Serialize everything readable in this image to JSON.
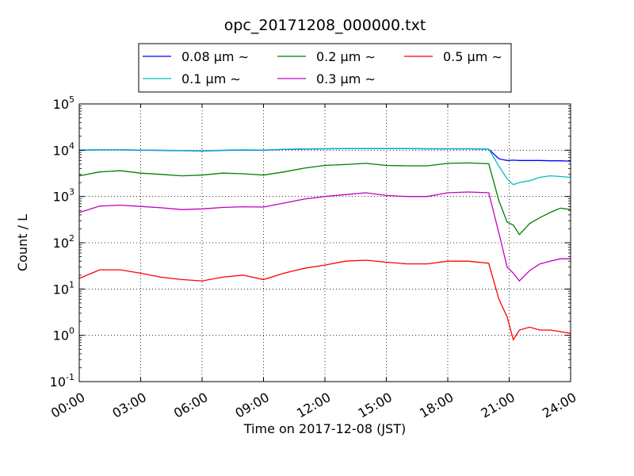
{
  "chart_data": {
    "type": "line",
    "title": "opc_20171208_000000.txt",
    "xlabel": "Time on 2017-12-08 (JST)",
    "ylabel": "Count / L",
    "xlim": [
      0,
      24
    ],
    "ylim": [
      0.1,
      100000
    ],
    "yscale": "log",
    "grid": true,
    "legend_position": "top-center, outside plot, 3 columns",
    "x_tick_labels": [
      "00:00",
      "03:00",
      "06:00",
      "09:00",
      "12:00",
      "15:00",
      "18:00",
      "21:00",
      "24:00"
    ],
    "x_ticks": [
      0,
      3,
      6,
      9,
      12,
      15,
      18,
      21,
      24
    ],
    "y_ticks": [
      {
        "base": "10",
        "exp": "-1"
      },
      {
        "base": "10",
        "exp": "0"
      },
      {
        "base": "10",
        "exp": "1"
      },
      {
        "base": "10",
        "exp": "2"
      },
      {
        "base": "10",
        "exp": "3"
      },
      {
        "base": "10",
        "exp": "4"
      },
      {
        "base": "10",
        "exp": "5"
      }
    ],
    "x": [
      0,
      1,
      2,
      3,
      4,
      5,
      6,
      7,
      8,
      9,
      10,
      11,
      12,
      13,
      14,
      15,
      16,
      17,
      18,
      19,
      20,
      20.5,
      20.9,
      21.2,
      21.5,
      22,
      22.5,
      23,
      23.5,
      24
    ],
    "series": [
      {
        "name": "0.08 μm ∼",
        "color": "#0000ff",
        "values": [
          10000,
          10200,
          10200,
          10000,
          9900,
          9800,
          9600,
          9900,
          10100,
          10000,
          10400,
          10600,
          10700,
          10800,
          10800,
          10800,
          10800,
          10700,
          10700,
          10700,
          10500,
          6500,
          6000,
          6100,
          6000,
          6000,
          6000,
          5900,
          5900,
          5800
        ]
      },
      {
        "name": "0.1 μm ∼",
        "color": "#00bfbf",
        "values": [
          10100,
          10300,
          10300,
          10100,
          10000,
          9900,
          9700,
          10000,
          10200,
          10100,
          10500,
          10700,
          10800,
          10900,
          10900,
          10900,
          10900,
          10800,
          10800,
          10800,
          10600,
          4500,
          2400,
          1800,
          2000,
          2200,
          2600,
          2800,
          2700,
          2600
        ]
      },
      {
        "name": "0.2 μm ∼",
        "color": "#008000",
        "values": [
          2800,
          3400,
          3600,
          3200,
          3000,
          2800,
          2900,
          3200,
          3100,
          2900,
          3400,
          4100,
          4700,
          4900,
          5200,
          4700,
          4600,
          4600,
          5200,
          5300,
          5100,
          800,
          280,
          240,
          150,
          260,
          350,
          450,
          560,
          520
        ]
      },
      {
        "name": "0.3 μm ∼",
        "color": "#bf00bf",
        "values": [
          450,
          620,
          650,
          610,
          570,
          520,
          540,
          580,
          600,
          590,
          720,
          880,
          1000,
          1100,
          1200,
          1050,
          1000,
          1000,
          1200,
          1250,
          1200,
          160,
          30,
          22,
          15,
          25,
          35,
          40,
          45,
          45
        ]
      },
      {
        "name": "0.5 μm ∼",
        "color": "#ff0000",
        "values": [
          17,
          26,
          26,
          22,
          18,
          16,
          15,
          18,
          20,
          16,
          22,
          28,
          33,
          40,
          42,
          38,
          35,
          35,
          40,
          40,
          36,
          6,
          2.5,
          0.8,
          1.3,
          1.5,
          1.3,
          1.3,
          1.2,
          1.1
        ]
      }
    ]
  }
}
